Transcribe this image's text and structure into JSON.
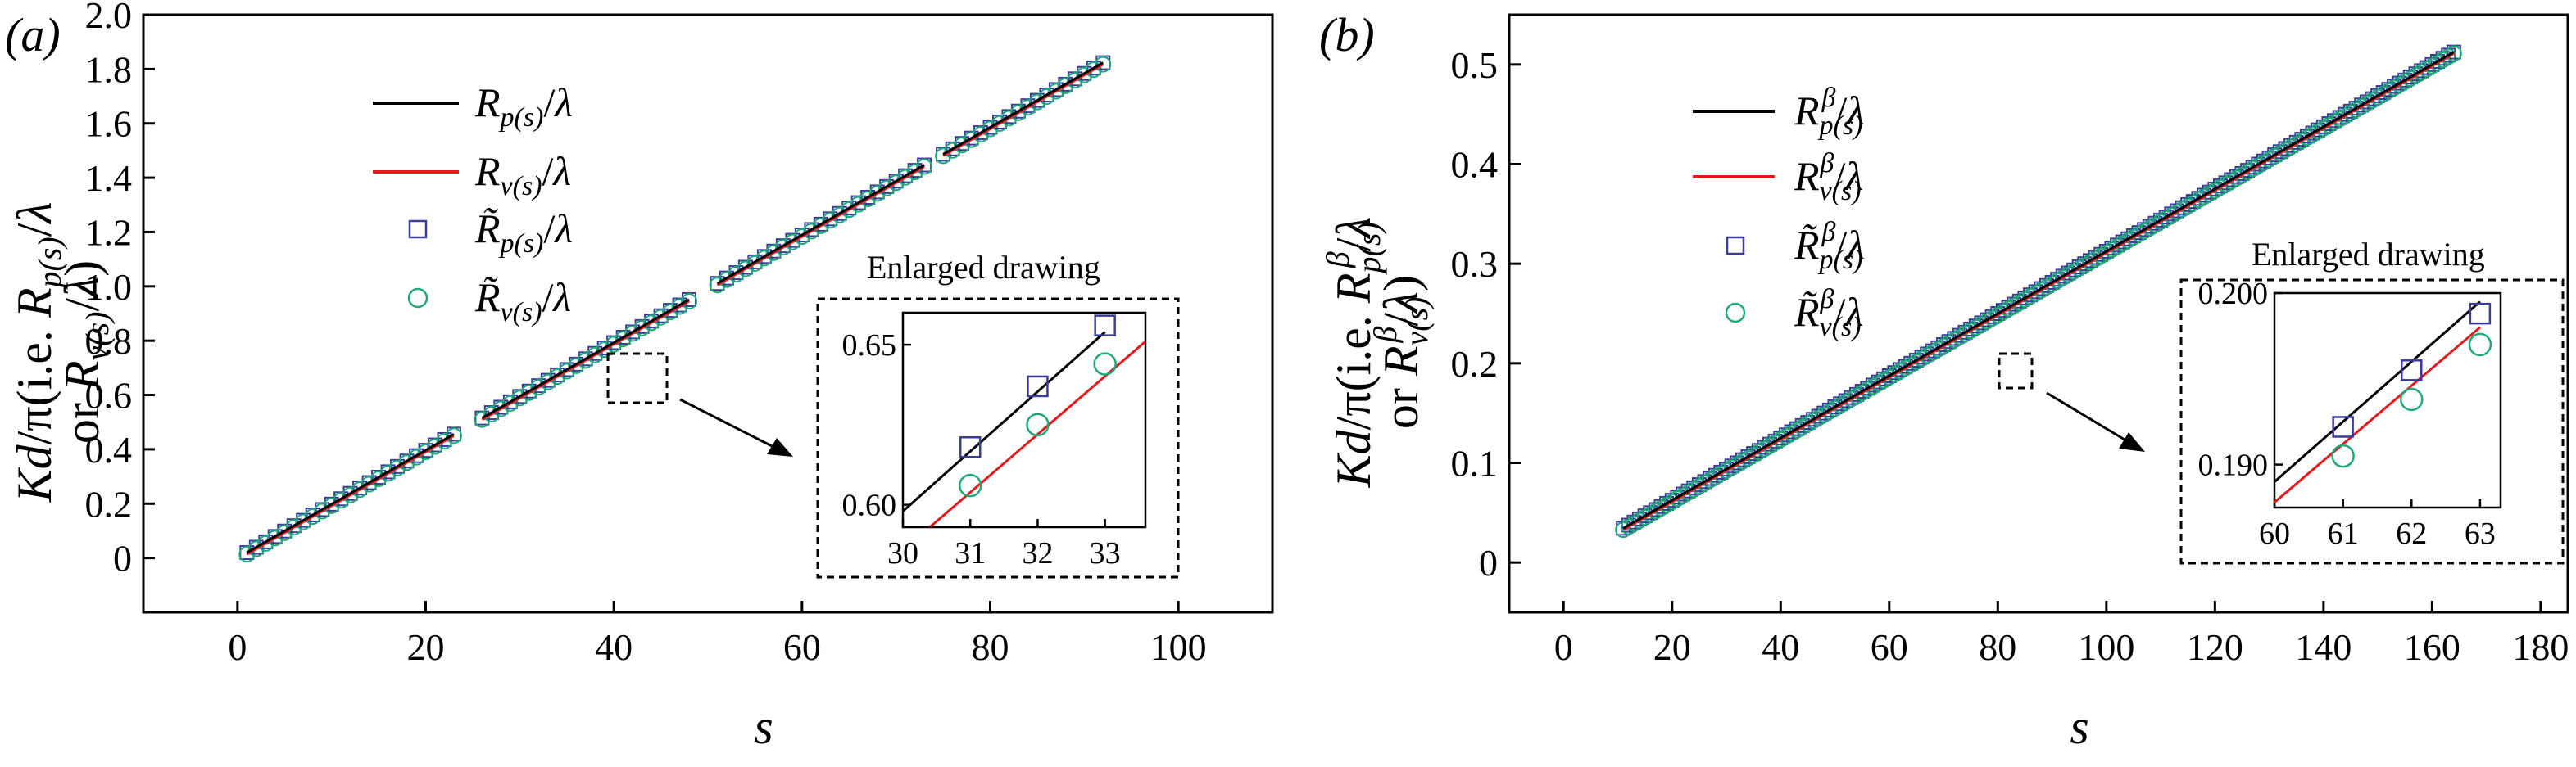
{
  "chart_data": [
    {
      "panel": "(a)",
      "type": "line",
      "xlabel": "s",
      "ylabel": "Kd/π(i.e. R_p(s)/λ or R_v(s)/λ)",
      "xlim": [
        -10,
        110
      ],
      "ylim": [
        -0.2,
        2.0
      ],
      "xticks": [
        "0",
        "20",
        "40",
        "60",
        "80",
        "100"
      ],
      "yticks": [
        "0",
        "0.2",
        "0.4",
        "0.6",
        "0.8",
        "1.0",
        "1.2",
        "1.4",
        "1.6",
        "1.8",
        "2.0"
      ],
      "legend": [
        "Rp(s)/λ",
        "Rv(s)/λ",
        "R̃p(s)/λ",
        "R̃v(s)/λ"
      ],
      "segments": [
        [
          1,
          23
        ],
        [
          26,
          48
        ],
        [
          51,
          73
        ],
        [
          75,
          92
        ]
      ],
      "slope": 0.01982,
      "offset_p": 0.0,
      "offset_v": -0.006,
      "series": [
        {
          "name": "Rp(s)/λ",
          "kind": "line",
          "color": "#000000"
        },
        {
          "name": "Rv(s)/λ",
          "kind": "line",
          "color": "#e41a1c"
        },
        {
          "name": "R̃p(s)/λ",
          "kind": "square",
          "color": "#3b3b9a"
        },
        {
          "name": "R̃v(s)/λ",
          "kind": "circle",
          "color": "#1fa87a"
        }
      ],
      "inset": {
        "title": "Enlarged drawing",
        "xlim": [
          30,
          33.6
        ],
        "ylim": [
          0.593,
          0.66
        ],
        "xticks": [
          "30",
          "31",
          "32",
          "33"
        ],
        "yticks": [
          "0.60",
          "0.65"
        ],
        "line_p": [
          [
            30.0,
            0.598
          ],
          [
            33.0,
            0.654
          ]
        ],
        "line_v": [
          [
            30.4,
            0.593
          ],
          [
            33.6,
            0.651
          ]
        ],
        "squares": [
          [
            31,
            0.618
          ],
          [
            32,
            0.637
          ],
          [
            33,
            0.656
          ]
        ],
        "circles": [
          [
            31,
            0.606
          ],
          [
            32,
            0.625
          ],
          [
            33,
            0.644
          ]
        ]
      }
    },
    {
      "panel": "(b)",
      "type": "line",
      "xlabel": "s",
      "ylabel": "Kd/π(i.e. R^β_p(s)/λ or R^β_v(s)/λ)",
      "xlim": [
        -10,
        185
      ],
      "ylim": [
        -0.05,
        0.55
      ],
      "xticks": [
        "0",
        "20",
        "40",
        "60",
        "80",
        "100",
        "120",
        "140",
        "160",
        "180"
      ],
      "yticks": [
        "0",
        "0.1",
        "0.2",
        "0.3",
        "0.4",
        "0.5"
      ],
      "legend": [
        "Rβp(s)/λ",
        "Rβv(s)/λ",
        "R̃βp(s)/λ",
        "R̃βv(s)/λ"
      ],
      "x_range": [
        11,
        164
      ],
      "slope": 0.003125,
      "offset_p": 0.0,
      "offset_v": -0.0015,
      "series": [
        {
          "name": "Rβp(s)/λ",
          "kind": "line",
          "color": "#000000"
        },
        {
          "name": "Rβv(s)/λ",
          "kind": "line",
          "color": "#e41a1c"
        },
        {
          "name": "R̃βp(s)/λ",
          "kind": "square",
          "color": "#3b3b9a"
        },
        {
          "name": "R̃βv(s)/λ",
          "kind": "circle",
          "color": "#1fa87a"
        }
      ],
      "inset": {
        "title": "Enlarged drawing",
        "xlim": [
          60,
          63.3
        ],
        "ylim": [
          0.1875,
          0.2
        ],
        "xticks": [
          "60",
          "61",
          "62",
          "63"
        ],
        "yticks": [
          "0.190",
          "0.200"
        ],
        "line_p": [
          [
            60.0,
            0.189
          ],
          [
            63.0,
            0.1995
          ]
        ],
        "line_v": [
          [
            60.0,
            0.1878
          ],
          [
            63.0,
            0.198
          ]
        ],
        "squares": [
          [
            61,
            0.1922
          ],
          [
            62,
            0.1955
          ],
          [
            63,
            0.1988
          ]
        ],
        "circles": [
          [
            61,
            0.1905
          ],
          [
            62,
            0.1938
          ],
          [
            63,
            0.197
          ]
        ]
      }
    }
  ]
}
